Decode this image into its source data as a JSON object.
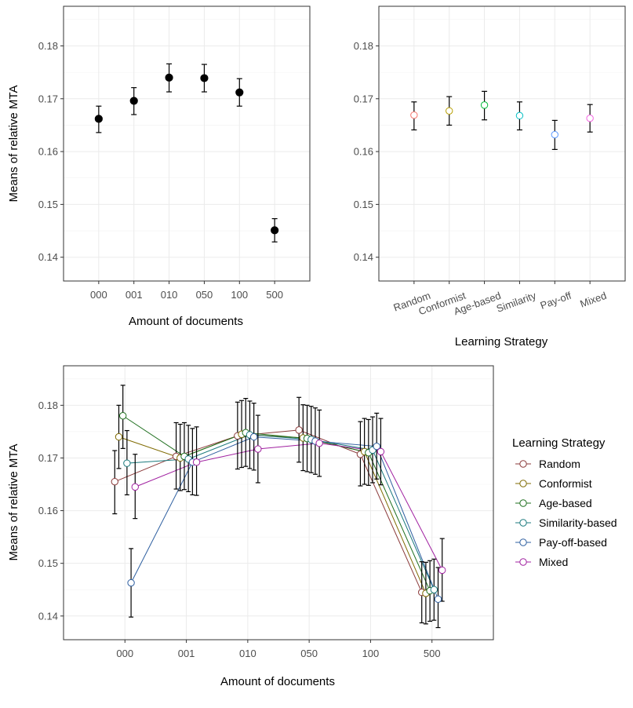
{
  "chart_data": [
    {
      "type": "scatter",
      "xlabel": "Amount of documents",
      "ylabel": "Means of relative MTA",
      "categories": [
        "000",
        "001",
        "010",
        "050",
        "100",
        "500"
      ],
      "ylim": [
        0.1355,
        0.1875
      ],
      "yticks": [
        0.14,
        0.15,
        0.16,
        0.17,
        0.18
      ],
      "ytick_labels": [
        "0.14",
        "0.15",
        "0.16",
        "0.17",
        "0.18"
      ],
      "grid": true,
      "series": [
        {
          "mean": [
            0.1662,
            0.1696,
            0.174,
            0.1739,
            0.1712,
            0.1451
          ],
          "lower": [
            0.1636,
            0.167,
            0.1713,
            0.1713,
            0.1686,
            0.1429
          ],
          "upper": [
            0.1686,
            0.1721,
            0.1766,
            0.1765,
            0.1738,
            0.1473
          ],
          "color": "#000000"
        }
      ]
    },
    {
      "type": "scatter",
      "xlabel": "Learning Strategy",
      "ylabel": "",
      "categories": [
        "Random",
        "Conformist",
        "Age-based",
        "Similarity",
        "Pay-off",
        "Mixed"
      ],
      "ylim": [
        0.1355,
        0.1875
      ],
      "yticks": [
        0.14,
        0.15,
        0.16,
        0.17,
        0.18
      ],
      "ytick_labels": [
        "0.14",
        "0.15",
        "0.16",
        "0.17",
        "0.18"
      ],
      "grid": true,
      "mean": [
        0.1669,
        0.1677,
        0.1688,
        0.1668,
        0.1632,
        0.1663
      ],
      "lower": [
        0.1641,
        0.165,
        0.166,
        0.1641,
        0.1604,
        0.1637
      ],
      "upper": [
        0.1694,
        0.1704,
        0.1714,
        0.1694,
        0.1659,
        0.1689
      ],
      "colors": [
        "#F8766D",
        "#B79F00",
        "#00BA38",
        "#00BFC4",
        "#619CFF",
        "#F564E3"
      ]
    },
    {
      "type": "line",
      "xlabel": "Amount of documents",
      "ylabel": "Means of relative MTA",
      "categories": [
        "000",
        "001",
        "010",
        "050",
        "100",
        "500"
      ],
      "ylim": [
        0.1355,
        0.1875
      ],
      "yticks": [
        0.14,
        0.15,
        0.16,
        0.17,
        0.18
      ],
      "ytick_labels": [
        "0.14",
        "0.15",
        "0.16",
        "0.17",
        "0.18"
      ],
      "grid": true,
      "legend_title": "Learning Strategy",
      "legend_position": "right",
      "series": [
        {
          "name": "Random",
          "color": "#8B3A3A",
          "mean": [
            0.1655,
            0.1703,
            0.1742,
            0.1753,
            0.1707,
            0.1445
          ],
          "lower": [
            0.1594,
            0.1641,
            0.1679,
            0.1692,
            0.1647,
            0.1387
          ],
          "upper": [
            0.1714,
            0.1767,
            0.1806,
            0.1815,
            0.1769,
            0.1503
          ]
        },
        {
          "name": "Conformist",
          "color": "#7F6A00",
          "mean": [
            0.174,
            0.17,
            0.1745,
            0.1738,
            0.1712,
            0.1443
          ],
          "lower": [
            0.168,
            0.1638,
            0.1682,
            0.1676,
            0.165,
            0.1385
          ],
          "upper": [
            0.18,
            0.1764,
            0.1809,
            0.1801,
            0.1775,
            0.1502
          ]
        },
        {
          "name": "Age-based",
          "color": "#1F6F1F",
          "mean": [
            0.178,
            0.1703,
            0.1748,
            0.1737,
            0.171,
            0.1448
          ],
          "lower": [
            0.1718,
            0.164,
            0.1684,
            0.1674,
            0.1648,
            0.139
          ],
          "upper": [
            0.1838,
            0.1767,
            0.1813,
            0.18,
            0.1773,
            0.1505
          ]
        },
        {
          "name": "Similarity-based",
          "color": "#1B7A7D",
          "mean": [
            0.169,
            0.1698,
            0.1744,
            0.1735,
            0.1715,
            0.145
          ],
          "lower": [
            0.163,
            0.1636,
            0.168,
            0.1672,
            0.1653,
            0.1392
          ],
          "upper": [
            0.1752,
            0.1762,
            0.1808,
            0.1798,
            0.1778,
            0.1508
          ]
        },
        {
          "name": "Pay-off-based",
          "color": "#2E5FA0",
          "mean": [
            0.1463,
            0.1692,
            0.174,
            0.1732,
            0.1722,
            0.1432
          ],
          "lower": [
            0.1398,
            0.163,
            0.1677,
            0.1669,
            0.166,
            0.1378
          ],
          "upper": [
            0.1528,
            0.1756,
            0.1804,
            0.1795,
            0.1785,
            0.1492
          ]
        },
        {
          "name": "Mixed",
          "color": "#A020A0",
          "mean": [
            0.1645,
            0.1692,
            0.1717,
            0.1728,
            0.1712,
            0.1487
          ],
          "lower": [
            0.1585,
            0.1629,
            0.1653,
            0.1665,
            0.1649,
            0.1428
          ],
          "upper": [
            0.1707,
            0.1759,
            0.1781,
            0.1791,
            0.1775,
            0.1547
          ]
        }
      ]
    }
  ]
}
